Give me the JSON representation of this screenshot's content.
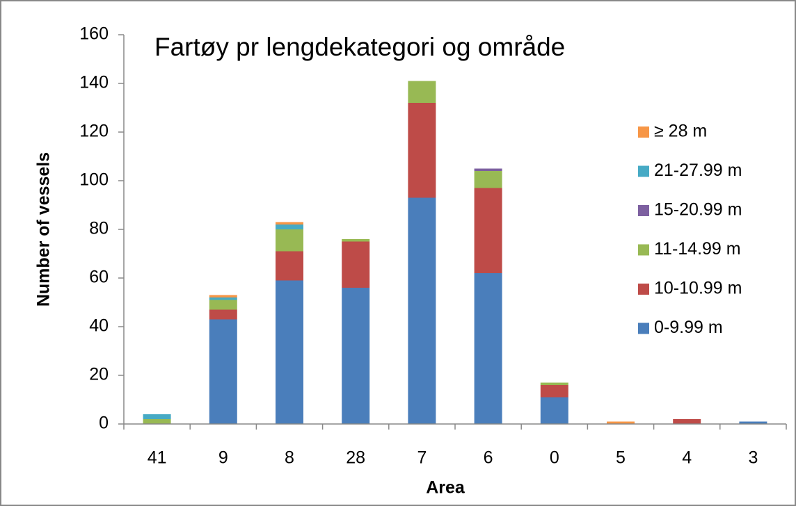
{
  "chart_data": {
    "type": "stacked-bar",
    "title": "Fartøy pr lengdekategori og område",
    "x_label": "Area",
    "y_label": "Number of vessels",
    "categories": [
      "41",
      "9",
      "8",
      "28",
      "7",
      "6",
      "0",
      "5",
      "4",
      "3"
    ],
    "series": [
      {
        "name": "0-9.99 m",
        "color": "#4a7ebb",
        "values": [
          0,
          43,
          59,
          56,
          93,
          62,
          11,
          0,
          0,
          1
        ]
      },
      {
        "name": "10-10.99 m",
        "color": "#be4b48",
        "values": [
          0,
          4,
          12,
          19,
          39,
          35,
          5,
          0,
          2,
          0
        ]
      },
      {
        "name": "11-14.99 m",
        "color": "#98b954",
        "values": [
          2,
          4,
          9,
          1,
          9,
          7,
          1,
          0,
          0,
          0
        ]
      },
      {
        "name": "15-20.99 m",
        "color": "#7d60a0",
        "values": [
          0,
          0,
          0,
          0,
          0,
          1,
          0,
          0,
          0,
          0
        ]
      },
      {
        "name": "21-27.99 m",
        "color": "#46aac5",
        "values": [
          2,
          1,
          2,
          0,
          0,
          0,
          0,
          0,
          0,
          0
        ]
      },
      {
        "name": "≥ 28 m",
        "color": "#f79646",
        "values": [
          0,
          1,
          1,
          0,
          0,
          0,
          0,
          1,
          0,
          0
        ]
      }
    ],
    "ylim": [
      0,
      160
    ],
    "yticks": [
      0,
      20,
      40,
      60,
      80,
      100,
      120,
      140,
      160
    ],
    "grid": false,
    "legend": "right"
  }
}
